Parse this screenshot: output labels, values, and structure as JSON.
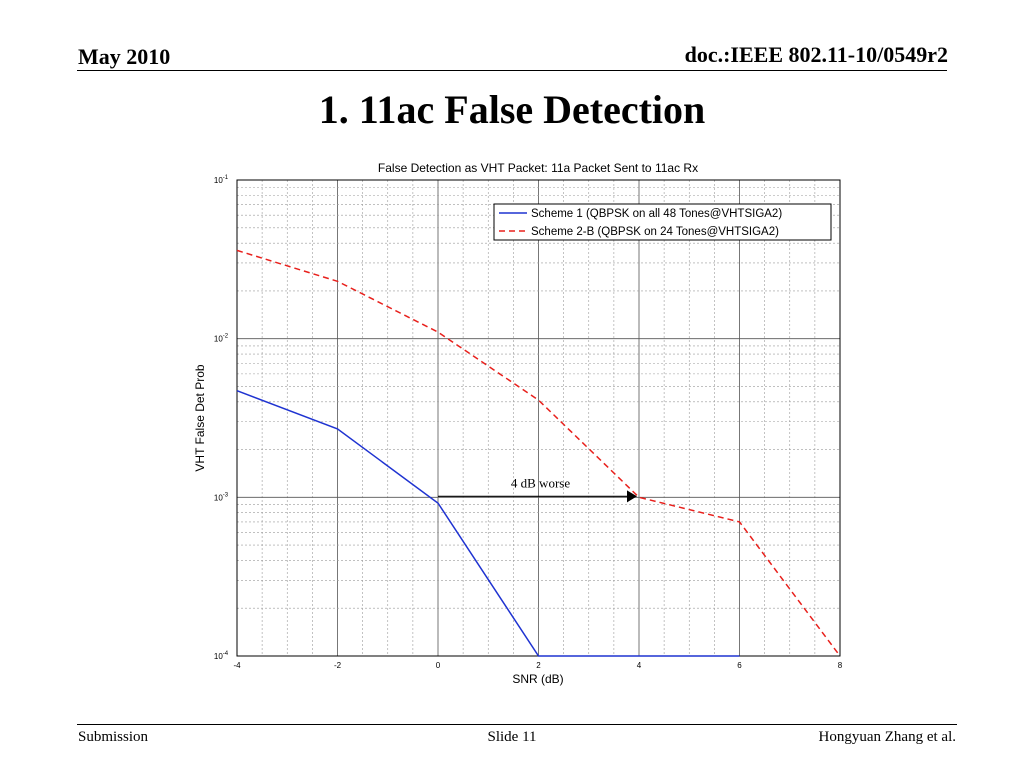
{
  "header": {
    "date": "May 2010",
    "doc": "doc.:IEEE 802.11-10/0549r2"
  },
  "slide": {
    "title": "1. 11ac False Detection"
  },
  "footer": {
    "left": "Submission",
    "center": "Slide 11",
    "right": "Hongyuan Zhang et al."
  },
  "chart_data": {
    "type": "line",
    "title": "False Detection as VHT Packet: 11a Packet Sent to 11ac Rx",
    "xlabel": "SNR (dB)",
    "ylabel": "VHT False Det Prob",
    "xlim": [
      -4,
      8
    ],
    "ylim": [
      0.0001,
      0.1
    ],
    "yscale": "log",
    "grid": true,
    "legend_position": "top-right",
    "x_ticks": [
      "-4",
      "-2",
      "0",
      "2",
      "4",
      "6",
      "8"
    ],
    "y_ticks": [
      {
        "base": "10",
        "exp": "-1"
      },
      {
        "base": "10",
        "exp": "-2"
      },
      {
        "base": "10",
        "exp": "-3"
      },
      {
        "base": "10",
        "exp": "-4"
      }
    ],
    "series": [
      {
        "name": "Scheme 1 (QBPSK on all 48 Tones@VHTSIGA2)",
        "color": "#1f33d1",
        "dash": "solid",
        "x": [
          -4,
          -2,
          0,
          2,
          4,
          6
        ],
        "y": [
          0.0047,
          0.0027,
          0.00092,
          0.0001,
          0.0001,
          0.0001
        ]
      },
      {
        "name": "Scheme 2-B (QBPSK on 24 Tones@VHTSIGA2)",
        "color": "#e8201c",
        "dash": "dashed",
        "x": [
          -4,
          -2,
          0,
          2,
          4,
          6,
          8
        ],
        "y": [
          0.036,
          0.023,
          0.011,
          0.0041,
          0.001,
          0.0007,
          0.0001
        ]
      }
    ],
    "annotations": [
      {
        "text": "4 dB worse",
        "x_from": 0,
        "x_to": 4,
        "y": 0.001
      }
    ]
  }
}
